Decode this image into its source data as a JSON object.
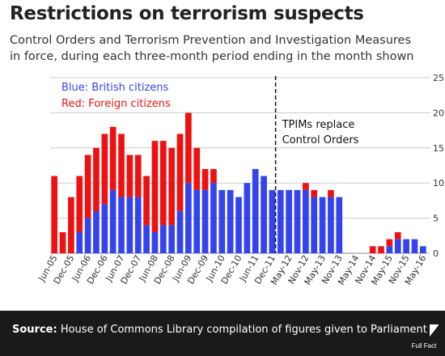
{
  "header": {
    "title": "Restrictions on terrorism suspects",
    "subtitle_line1": "Control Orders and Terrorism Prevention and Investigation Measures",
    "subtitle_line2": "in force, during each three-month period ending in the month shown"
  },
  "footer": {
    "source_label": "Source:",
    "source_text": "House of Commons Library compilation of figures given to Parliament",
    "logo_text": "Full Fact"
  },
  "colors": {
    "british": "#3344ee",
    "foreign": "#ee1111",
    "grid": "#cccccc",
    "axis": "#888888"
  },
  "chart_data": {
    "type": "bar",
    "stacked": true,
    "categories": [
      "Jun-05",
      "Sep-05",
      "Dec-05",
      "Mar-06",
      "Jun-06",
      "Sep-06",
      "Dec-06",
      "Mar-07",
      "Jun-07",
      "Sep-07",
      "Dec-07",
      "Mar-08",
      "Jun-08",
      "Sep-08",
      "Dec-08",
      "Mar-09",
      "Jun-09",
      "Sep-09",
      "Dec-09",
      "Mar-10",
      "Jun-10",
      "Sep-10",
      "Dec-10",
      "Mar-11",
      "Jun-11",
      "Sep-11",
      "Dec-11",
      "Feb-12",
      "May-12",
      "Aug-12",
      "Nov-12",
      "Feb-13",
      "May-13",
      "Aug-13",
      "Nov-13",
      "Feb-14",
      "May-14",
      "Aug-14",
      "Nov-14",
      "Feb-15",
      "May-15",
      "Aug-15",
      "Nov-15",
      "Feb-16",
      "May-16"
    ],
    "tick_labels": [
      "Jun-05",
      "Dec-05",
      "Jun-06",
      "Dec-06",
      "Jun-07",
      "Dec-07",
      "Jun-08",
      "Dec-08",
      "Jun-09",
      "Dec-09",
      "Jun-10",
      "Dec-10",
      "Jun-11",
      "Dec-11",
      "May-12",
      "Nov-12",
      "May-13",
      "Nov-13",
      "May-14",
      "Nov-14",
      "May-15",
      "Nov-15",
      "May-16"
    ],
    "series": [
      {
        "name": "Blue: British citizens",
        "color": "#3344ee",
        "values": [
          0,
          0,
          0,
          3,
          5,
          6,
          7,
          9,
          8,
          8,
          8,
          4,
          3,
          4,
          4,
          6,
          10,
          9,
          9,
          10,
          9,
          9,
          8,
          10,
          12,
          11,
          9,
          9,
          9,
          9,
          9,
          8,
          8,
          8,
          8,
          0,
          0,
          0,
          0,
          0,
          1,
          2,
          2,
          2,
          1
        ]
      },
      {
        "name": "Red: Foreign citizens",
        "color": "#ee1111",
        "values": [
          11,
          3,
          8,
          8,
          9,
          9,
          10,
          9,
          9,
          6,
          6,
          7,
          13,
          12,
          11,
          11,
          10,
          6,
          3,
          2,
          0,
          0,
          0,
          0,
          0,
          0,
          0,
          0,
          0,
          0,
          1,
          1,
          0,
          1,
          0,
          0,
          0,
          0,
          1,
          1,
          1,
          1,
          0,
          0,
          0
        ]
      }
    ],
    "annotation": {
      "text_line1": "TPIMs replace",
      "text_line2": "Control Orders",
      "after_category": "Dec-11"
    },
    "ylim": [
      0,
      25
    ],
    "yticks": [
      0,
      5,
      10,
      15,
      20,
      25
    ],
    "grid": true,
    "legend": "top-left"
  }
}
